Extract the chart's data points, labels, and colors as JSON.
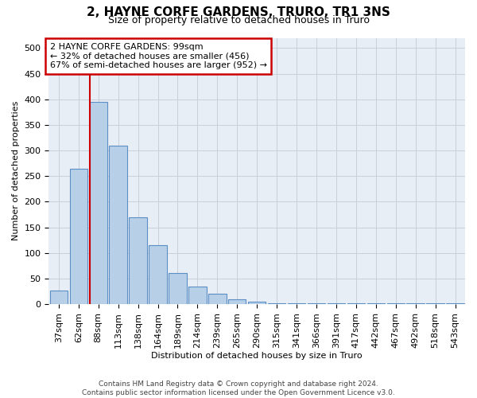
{
  "title": "2, HAYNE CORFE GARDENS, TRURO, TR1 3NS",
  "subtitle": "Size of property relative to detached houses in Truro",
  "xlabel": "Distribution of detached houses by size in Truro",
  "ylabel": "Number of detached properties",
  "bin_labels": [
    "37sqm",
    "62sqm",
    "88sqm",
    "113sqm",
    "138sqm",
    "164sqm",
    "189sqm",
    "214sqm",
    "239sqm",
    "265sqm",
    "290sqm",
    "315sqm",
    "341sqm",
    "366sqm",
    "391sqm",
    "417sqm",
    "442sqm",
    "467sqm",
    "492sqm",
    "518sqm",
    "543sqm"
  ],
  "bar_values": [
    27,
    265,
    395,
    310,
    170,
    115,
    60,
    35,
    20,
    10,
    5,
    2,
    1,
    1,
    1,
    1,
    1,
    1,
    1,
    1,
    1
  ],
  "bar_color": "#b8cfe8",
  "bar_edge_color": "#5b8ec4",
  "vline_x_bin": 2,
  "vline_color": "#cc0000",
  "annotation_text": "2 HAYNE CORFE GARDENS: 99sqm\n← 32% of detached houses are smaller (456)\n67% of semi-detached houses are larger (952) →",
  "annotation_box_facecolor": "#ffffff",
  "annotation_box_edgecolor": "#cc0000",
  "ylim": [
    0,
    520
  ],
  "yticks": [
    0,
    50,
    100,
    150,
    200,
    250,
    300,
    350,
    400,
    450,
    500
  ],
  "footer_line1": "Contains HM Land Registry data © Crown copyright and database right 2024.",
  "footer_line2": "Contains public sector information licensed under the Open Government Licence v3.0.",
  "background_color": "#ffffff",
  "plot_bg_color": "#e8eef5",
  "grid_color": "#c8d0dc",
  "title_fontsize": 11,
  "subtitle_fontsize": 9,
  "axis_label_fontsize": 8,
  "tick_fontsize": 8,
  "annotation_fontsize": 8,
  "footer_fontsize": 6.5
}
